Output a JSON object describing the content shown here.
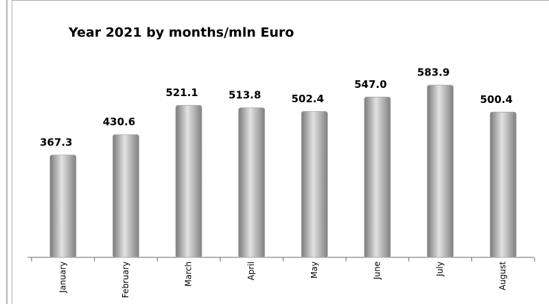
{
  "chart_data": {
    "type": "bar",
    "title": "Year 2021 by months/mln Euro",
    "categories": [
      "January",
      "February",
      "March",
      "April",
      "May",
      "June",
      "July",
      "August"
    ],
    "values": [
      367.3,
      430.6,
      521.1,
      513.8,
      502.4,
      547.0,
      583.9,
      500.4
    ],
    "value_labels": [
      "367.3",
      "430.6",
      "521.1",
      "513.8",
      "502.4",
      "547.0",
      "583.9",
      "500.4"
    ],
    "color": "#a6a6a6",
    "ylim": [
      50,
      650
    ]
  }
}
